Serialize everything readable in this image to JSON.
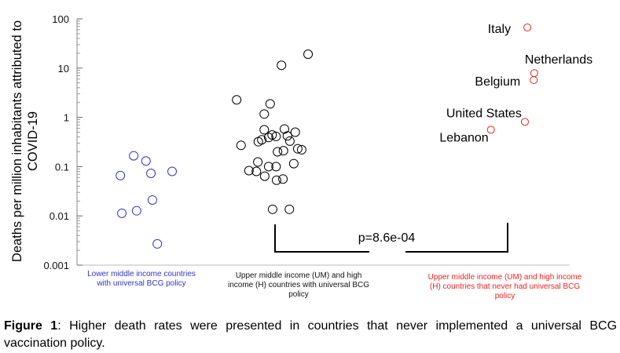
{
  "chart_data": {
    "type": "scatter",
    "title": "",
    "xlabel": "",
    "ylabel": "Deaths per million inhabitants attributed to COVID-19",
    "ylabel_lines": [
      "Deaths per million inhabitants attributed to",
      "COVID-19"
    ],
    "yscale": "log",
    "ylim": [
      0.001,
      100
    ],
    "yticks": [
      "100",
      "10",
      "1",
      "0.1",
      "0.01",
      "0.001"
    ],
    "ytick_values": [
      100,
      10,
      1,
      0.1,
      0.01,
      0.001
    ],
    "xlim": [
      0,
      100
    ],
    "grid": false,
    "groups": [
      {
        "name": "Lower middle income countries with universal BCG policy",
        "label_lines": [
          "Lower middle income countries",
          "with universal BCG policy"
        ],
        "color": "#3333cc",
        "points": [
          {
            "x": 8.8,
            "y": 0.066
          },
          {
            "x": 11.5,
            "y": 0.166
          },
          {
            "x": 14.0,
            "y": 0.13
          },
          {
            "x": 15.0,
            "y": 0.073
          },
          {
            "x": 19.3,
            "y": 0.08
          },
          {
            "x": 15.3,
            "y": 0.021
          },
          {
            "x": 9.1,
            "y": 0.0113
          },
          {
            "x": 12.1,
            "y": 0.0127
          },
          {
            "x": 16.3,
            "y": 0.0027
          }
        ]
      },
      {
        "name": "Upper middle income (UM) and high income (H) countries with universal BCG policy",
        "label_lines": [
          "Upper middle income (UM)  and high",
          "income (H) countries with universal BCG",
          "policy"
        ],
        "color": "#000000",
        "points": [
          {
            "x": 32.4,
            "y": 2.27
          },
          {
            "x": 41.5,
            "y": 11.4
          },
          {
            "x": 46.9,
            "y": 19.1
          },
          {
            "x": 39.2,
            "y": 1.88
          },
          {
            "x": 38.0,
            "y": 1.17
          },
          {
            "x": 33.3,
            "y": 0.27
          },
          {
            "x": 38.0,
            "y": 0.56
          },
          {
            "x": 42.1,
            "y": 0.58
          },
          {
            "x": 44.3,
            "y": 0.5
          },
          {
            "x": 36.8,
            "y": 0.32
          },
          {
            "x": 37.5,
            "y": 0.35
          },
          {
            "x": 38.9,
            "y": 0.39
          },
          {
            "x": 40.4,
            "y": 0.41
          },
          {
            "x": 42.7,
            "y": 0.42
          },
          {
            "x": 43.2,
            "y": 0.33
          },
          {
            "x": 39.6,
            "y": 0.44
          },
          {
            "x": 40.7,
            "y": 0.2
          },
          {
            "x": 41.9,
            "y": 0.21
          },
          {
            "x": 44.8,
            "y": 0.23
          },
          {
            "x": 45.6,
            "y": 0.22
          },
          {
            "x": 36.7,
            "y": 0.124
          },
          {
            "x": 44.0,
            "y": 0.115
          },
          {
            "x": 34.9,
            "y": 0.083
          },
          {
            "x": 36.4,
            "y": 0.08
          },
          {
            "x": 38.9,
            "y": 0.1
          },
          {
            "x": 40.4,
            "y": 0.1
          },
          {
            "x": 38.1,
            "y": 0.064
          },
          {
            "x": 40.5,
            "y": 0.053
          },
          {
            "x": 41.8,
            "y": 0.056
          },
          {
            "x": 39.7,
            "y": 0.0136
          },
          {
            "x": 43.1,
            "y": 0.0136
          }
        ]
      },
      {
        "name": "Upper middle income (UM) and high income (H) countries that never had universal BCG policy",
        "label_lines": [
          "Upper middle income (UM)  and high income",
          "(H) countries that never had universal BCG",
          "policy"
        ],
        "color": "#ee2222",
        "points": [
          {
            "x": 91.4,
            "y": 66.7,
            "label": "Italy"
          },
          {
            "x": 92.8,
            "y": 7.9,
            "label": "Netherlands"
          },
          {
            "x": 92.7,
            "y": 5.7,
            "label": "Belgium"
          },
          {
            "x": 90.9,
            "y": 0.81,
            "label": "United States"
          },
          {
            "x": 84.0,
            "y": 0.56,
            "label": "Lebanon"
          }
        ]
      }
    ],
    "annotations": [
      {
        "text": "p=8.6e-04",
        "type": "significance-bracket",
        "between": [
          "group 2",
          "group 3"
        ]
      }
    ]
  },
  "caption": {
    "label": "Figure 1",
    "text": ":  Higher death rates were presented in countries that never implemented a universal BCG vaccination policy."
  }
}
